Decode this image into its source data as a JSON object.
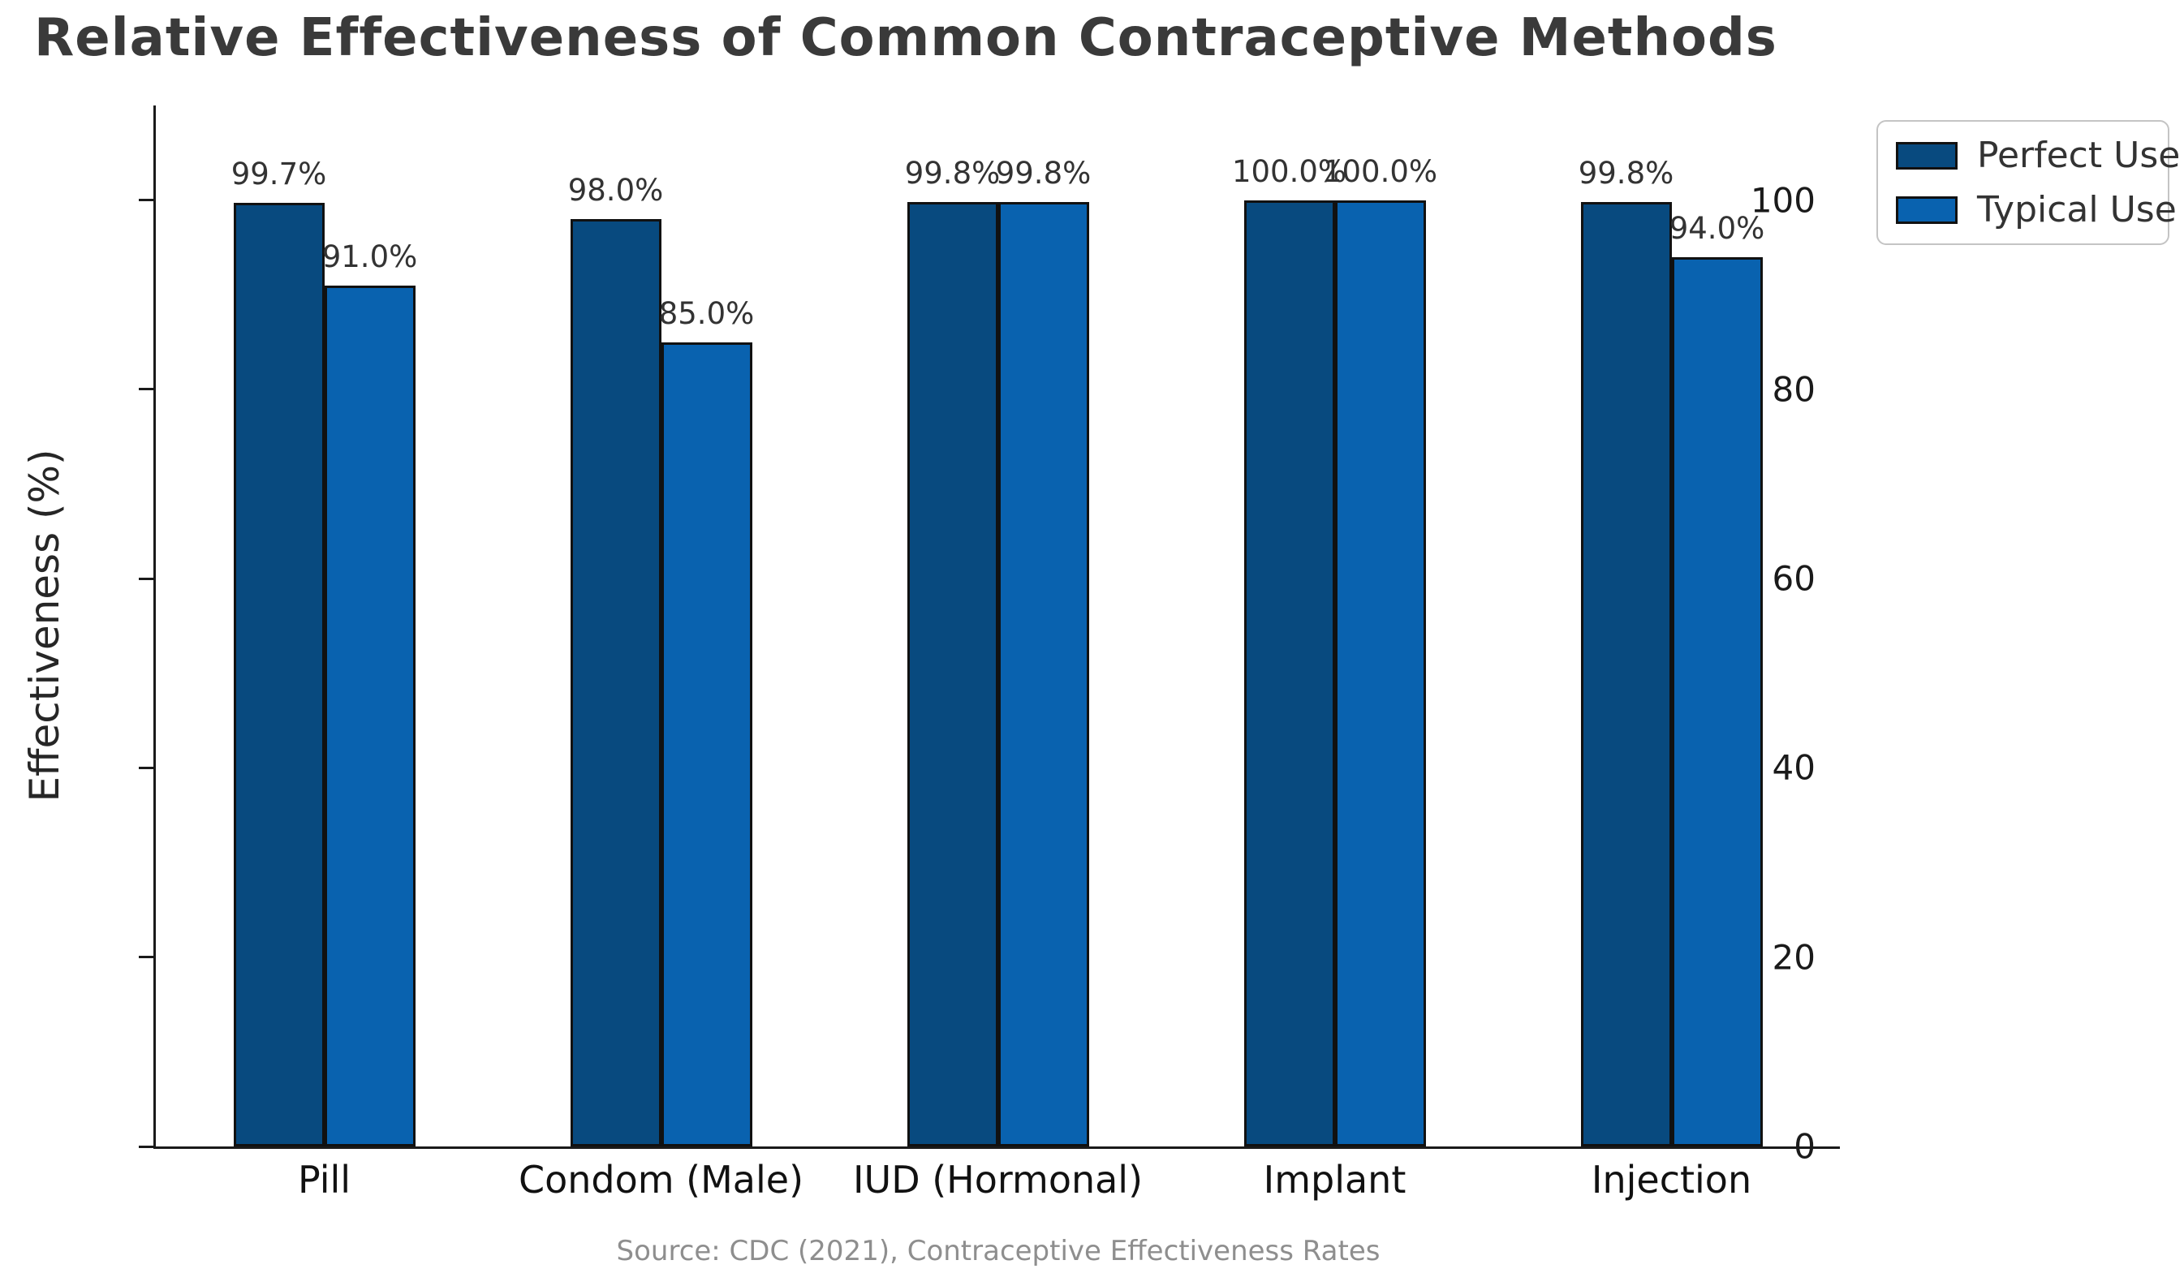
{
  "chart_data": {
    "type": "bar",
    "title": "Relative Effectiveness of Common Contraceptive Methods",
    "ylabel": "Effectiveness (%)",
    "xlabel": "",
    "categories": [
      "Pill",
      "Condom (Male)",
      "IUD (Hormonal)",
      "Implant",
      "Injection"
    ],
    "series": [
      {
        "name": "Perfect Use",
        "color": "#084a7f",
        "values": [
          99.7,
          98.0,
          99.8,
          100.0,
          99.8
        ],
        "labels": [
          "99.7%",
          "98.0%",
          "99.8%",
          "100.0%",
          "99.8%"
        ]
      },
      {
        "name": "Typical Use",
        "color": "#0962af",
        "values": [
          91.0,
          85.0,
          99.8,
          100.0,
          94.0
        ],
        "labels": [
          "91.0%",
          "85.0%",
          "99.8%",
          "100.0%",
          "94.0%"
        ]
      }
    ],
    "ylim": [
      0,
      110
    ],
    "yticks": [
      0,
      20,
      40,
      60,
      80,
      100
    ],
    "grid": false,
    "legend_position": "upper right",
    "source": "Source: CDC (2021), Contraceptive Effectiveness Rates"
  }
}
